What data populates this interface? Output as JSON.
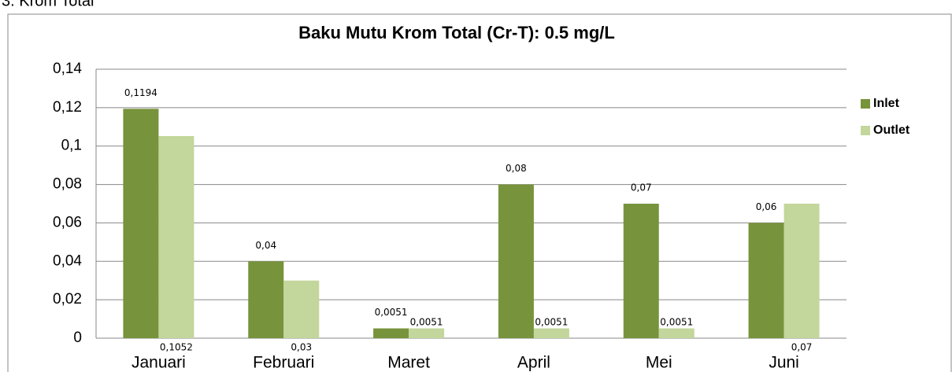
{
  "heading": "3. Krom Total",
  "chart_data": {
    "type": "bar",
    "title": "Baku Mutu Krom Total (Cr-T): 0.5 mg/L",
    "categories": [
      "Januari",
      "Februari",
      "Maret",
      "April",
      "Mei",
      "Juni"
    ],
    "series": [
      {
        "name": "Inlet",
        "color": "#77933c",
        "values": [
          0.1194,
          0.04,
          0.0051,
          0.08,
          0.07,
          0.06
        ],
        "value_labels": [
          "0,1194",
          "0,04",
          "0,0051",
          "0,08",
          "0,07",
          "0,06"
        ]
      },
      {
        "name": "Outlet",
        "color": "#c3d69b",
        "values": [
          0.1052,
          0.03,
          0.0051,
          0.0051,
          0.0051,
          0.07
        ],
        "value_labels": [
          "0,1052",
          "0,03",
          "0,0051",
          "0,0051",
          "0,0051",
          "0,07"
        ]
      }
    ],
    "ylim": [
      0,
      0.14
    ],
    "yticks": [
      0,
      {
        "value": 0.02,
        "label": "0,02"
      },
      {
        "value": 0.04,
        "label": "0,04"
      },
      {
        "value": 0.06,
        "label": "0,06"
      },
      {
        "value": 0.08,
        "label": "0,08"
      },
      {
        "value": 0.1,
        "label": "0,1"
      },
      {
        "value": 0.12,
        "label": "0,12"
      },
      {
        "value": 0.14,
        "label": "0,14"
      }
    ],
    "grid": true,
    "legend": "right"
  }
}
